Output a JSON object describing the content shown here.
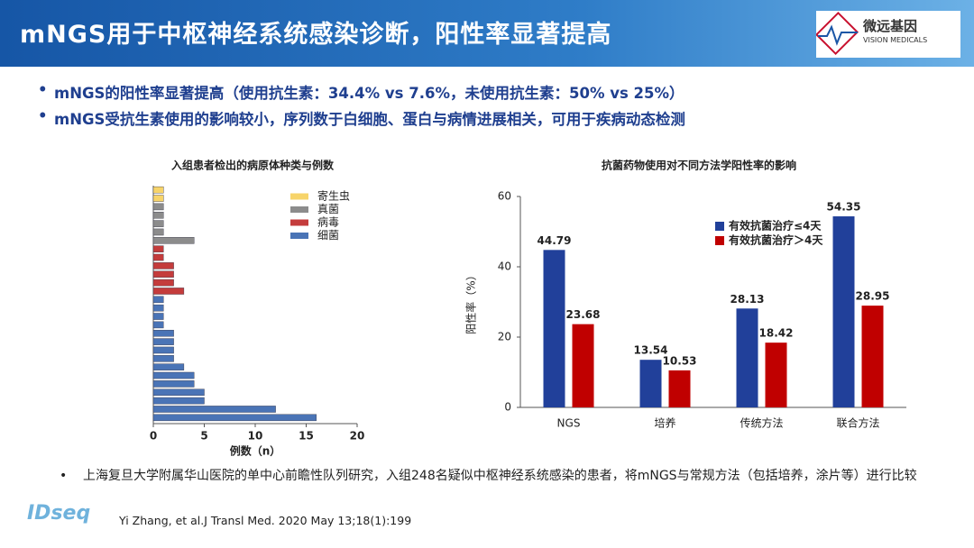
{
  "header": {
    "title": "mNGS用于中枢神经系统感染诊断，阳性率显著提高",
    "logo_name": "微远基因",
    "logo_subtitle": "VISION MEDICALS"
  },
  "bullets": [
    "mNGS的阳性率显著提高（使用抗生素：34.4% vs 7.6%，未使用抗生素：50%  vs 25%）",
    "mNGS受抗生素使用的影响较小，序列数于白细胞、蛋白与病情进展相关，可用于疾病动态检测"
  ],
  "chart_data": [
    {
      "type": "barh",
      "title": "入组患者检出的病原体种类与例数",
      "xlabel": "例数（n）",
      "categories": [
        null,
        null,
        null,
        null,
        null,
        null,
        null,
        null,
        null,
        null,
        null,
        null,
        null,
        null,
        null,
        null,
        null,
        null,
        null,
        null,
        null,
        null,
        null,
        null,
        null,
        null,
        null,
        null
      ],
      "series": [
        {
          "name": "寄生虫",
          "color": "#f7d46a",
          "values": [
            1,
            1,
            null,
            null,
            null,
            null,
            null,
            null,
            null,
            null,
            null,
            null,
            null,
            null,
            null,
            null,
            null,
            null,
            null,
            null,
            null,
            null,
            null,
            null,
            null,
            null,
            null,
            null
          ]
        },
        {
          "name": "真菌",
          "color": "#8c8c8c",
          "values": [
            null,
            null,
            1,
            1,
            1,
            1,
            4,
            null,
            null,
            null,
            null,
            null,
            null,
            null,
            null,
            null,
            null,
            null,
            null,
            null,
            null,
            null,
            null,
            null,
            null,
            null,
            null,
            null
          ]
        },
        {
          "name": "病毒",
          "color": "#c43c3c",
          "values": [
            null,
            null,
            null,
            null,
            null,
            null,
            null,
            1,
            1,
            2,
            2,
            2,
            3,
            null,
            null,
            null,
            null,
            null,
            null,
            null,
            null,
            null,
            null,
            null,
            null,
            null,
            null,
            null
          ]
        },
        {
          "name": "细菌",
          "color": "#4a74b6",
          "values": [
            null,
            null,
            null,
            null,
            null,
            null,
            null,
            null,
            null,
            null,
            null,
            null,
            null,
            1,
            1,
            1,
            1,
            2,
            2,
            2,
            2,
            3,
            4,
            4,
            5,
            5,
            12,
            16
          ]
        }
      ],
      "xlim": [
        0,
        20
      ],
      "xticks": [
        0,
        5,
        10,
        15,
        20
      ],
      "legend": "upper right"
    },
    {
      "type": "bar",
      "title": "抗菌药物使用对不同方法学阳性率的影响",
      "ylabel": "阳性率（%）",
      "categories": [
        "NGS",
        "培养",
        "传统方法",
        "联合方法"
      ],
      "series": [
        {
          "name": "有效抗菌治疗≤4天",
          "color": "#21409a",
          "values": [
            44.79,
            13.54,
            28.13,
            54.35
          ]
        },
        {
          "name": "有效抗菌治疗＞4天",
          "color": "#c00000",
          "values": [
            23.68,
            10.53,
            18.42,
            28.95
          ]
        }
      ],
      "ylim": [
        0,
        60
      ],
      "yticks": [
        0,
        20,
        40,
        60
      ],
      "legend": "upper right"
    }
  ],
  "notes": [
    "上海复旦大学附属华山医院的单中心前瞻性队列研究，入组248名疑似中枢神经系统感染的患者，将mNGS与常规方法（包括培养，涂片等）进行比较"
  ],
  "citation": "Yi Zhang, et al.J Transl Med. 2020 May 13;18(1):199",
  "footer_logo": "IDseq"
}
